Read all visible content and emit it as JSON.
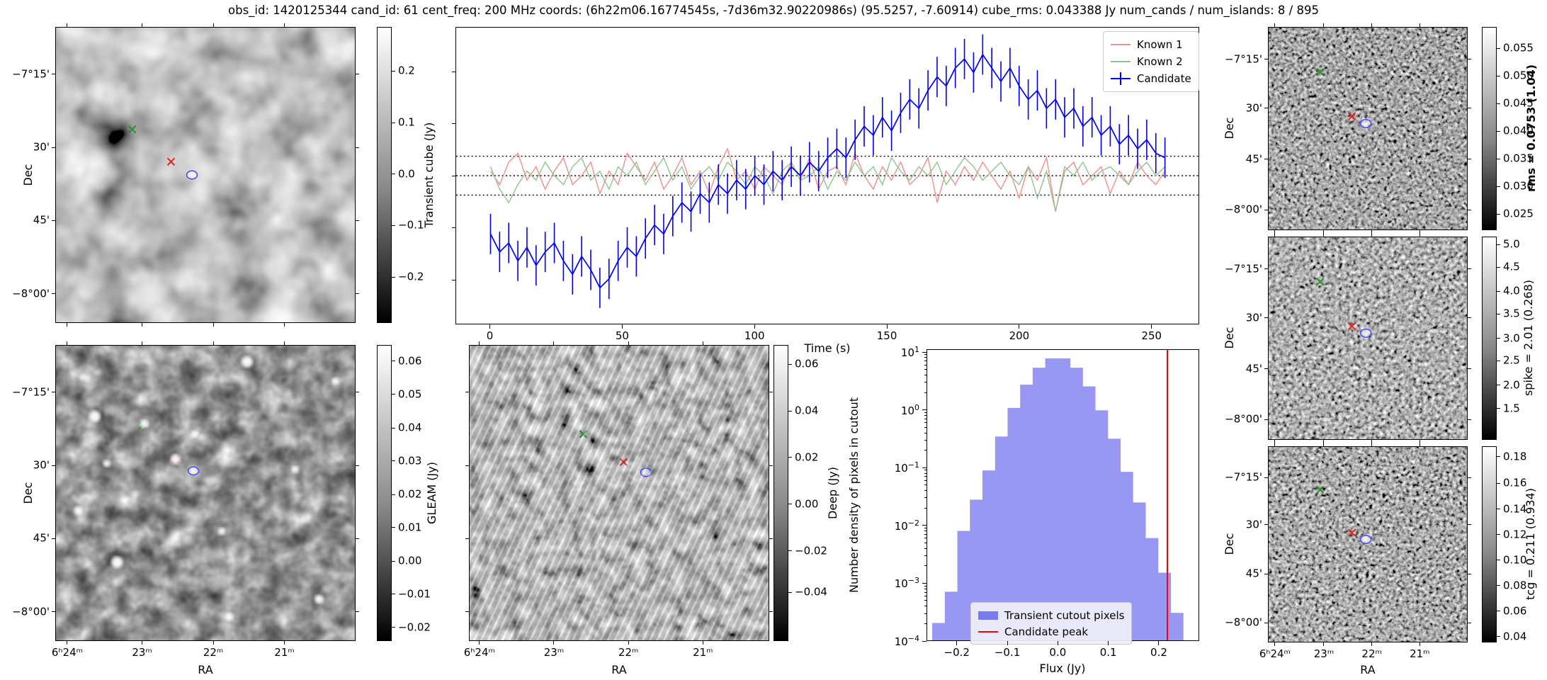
{
  "title": "obs_id: 1420125344 cand_id: 61 cent_freq: 200 MHz coords: (6h22m06.16774545s, -7d36m32.90220986s) (95.5257, -7.60914) cube_rms: 0.043388 Jy num_cands / num_islands: 8 / 895",
  "axes": {
    "dec_label": "Dec",
    "ra_label": "RA",
    "time_label": "Time (s)",
    "flux_label": "Flux (Jy)",
    "ndens_label": "Number density of pixels in cutout",
    "dec_ticks": [
      "−7°15'",
      "30'",
      "45'",
      "−8°00'"
    ],
    "ra_ticks": [
      "6ʰ24ᵐ",
      "23ᵐ",
      "22ᵐ",
      "21ᵐ"
    ],
    "time_ticks": [
      "0",
      "50",
      "100",
      "150",
      "200",
      "250"
    ],
    "flux_ticks": [
      "−0.2",
      "−0.1",
      "0.0",
      "0.1",
      "0.2"
    ],
    "ndens_exponents": [
      "1",
      "0",
      "−1",
      "−2",
      "−3",
      "−4"
    ]
  },
  "colorbars": {
    "cube": {
      "label": "Transient cube (Jy)",
      "ticks": [
        "0.2",
        "0.1",
        "0.0",
        "−0.1",
        "−0.2"
      ]
    },
    "gleam": {
      "label": "GLEAM (Jy)",
      "ticks": [
        "0.06",
        "0.05",
        "0.04",
        "0.03",
        "0.02",
        "0.01",
        "0.00",
        "−0.01",
        "−0.02"
      ]
    },
    "deep": {
      "label": "Deep (Jy)",
      "ticks": [
        "0.06",
        "0.04",
        "0.02",
        "0.00",
        "−0.02",
        "−0.04"
      ]
    },
    "rms": {
      "label": "rms = 0.0753 (1.04)",
      "ticks": [
        "0.055",
        "0.050",
        "0.045",
        "0.040",
        "0.035",
        "0.030",
        "0.025"
      ]
    },
    "spike": {
      "label": "spike = 2.01 (0.268)",
      "ticks": [
        "5.0",
        "4.5",
        "4.0",
        "3.5",
        "3.0",
        "2.5",
        "2.0",
        "1.5"
      ]
    },
    "tcg": {
      "label": "tcg = 0.211 (0.934)",
      "ticks": [
        "0.18",
        "0.16",
        "0.14",
        "0.12",
        "0.10",
        "0.08",
        "0.06",
        "0.04"
      ]
    }
  },
  "colors": {
    "known1": "#f28d8d",
    "known2": "#8fc48f",
    "candidate": "#0000ee",
    "hist_fill": "#7b7bf0",
    "peak_line": "#ff0000",
    "marker_known1": "#dd2222",
    "marker_known2": "#2e8b2e",
    "marker_candidate": "#4d4dff",
    "dotted_line": "#000000"
  },
  "lightcurve_legend": [
    {
      "label": "Known 1"
    },
    {
      "label": "Known 2"
    },
    {
      "label": "Candidate"
    }
  ],
  "hist_legend": [
    {
      "label": "Transient cutout pixels"
    },
    {
      "label": "Candidate peak"
    }
  ],
  "chart_data": [
    {
      "type": "line",
      "title": "",
      "xlabel": "Time (s)",
      "ylabel": "",
      "xlim": [
        -13,
        268
      ],
      "ylim": [
        -0.33,
        0.33
      ],
      "xticks": [
        0,
        50,
        100,
        150,
        200,
        250
      ],
      "hlines": [
        0.043388,
        0,
        -0.043388
      ],
      "legend_position": "upper right",
      "t0": 0,
      "dt": 3.45,
      "series": [
        {
          "name": "Known 1",
          "values": [
            0.01,
            -0.02,
            0.03,
            0.05,
            -0.01,
            0.02,
            -0.03,
            0.01,
            0.04,
            -0.02,
            0.0,
            0.03,
            -0.04,
            0.01,
            -0.02,
            0.05,
            0.02,
            -0.01,
            0.03,
            -0.03,
            0.0,
            0.04,
            -0.02,
            0.01,
            -0.04,
            0.02,
            0.06,
            -0.01,
            0.01,
            -0.03,
            0.02,
            0.0,
            -0.02,
            0.03,
            -0.01,
            0.04,
            -0.03,
            0.01,
            0.02,
            -0.02,
            0.05,
            0.0,
            -0.03,
            0.02,
            -0.01,
            0.03,
            -0.02,
            0.0,
            0.04,
            -0.06,
            0.01,
            -0.02,
            0.02,
            -0.01,
            0.03,
            0.0,
            -0.03,
            0.01,
            -0.05,
            0.02,
            -0.01,
            0.04,
            -0.08,
            0.01,
            0.03,
            -0.02,
            0.0,
            0.02,
            -0.04,
            0.01,
            -0.02,
            0.03,
            0.0,
            -0.02,
            0.01
          ]
        },
        {
          "name": "Known 2",
          "values": [
            0.02,
            -0.03,
            -0.06,
            -0.02,
            0.01,
            -0.01,
            0.03,
            0.0,
            -0.02,
            0.02,
            0.04,
            -0.01,
            0.01,
            -0.03,
            0.02,
            0.0,
            0.03,
            -0.02,
            0.01,
            0.04,
            -0.01,
            0.02,
            -0.03,
            0.0,
            0.02,
            -0.01,
            0.03,
            0.01,
            -0.02,
            0.02,
            0.0,
            -0.04,
            0.01,
            0.03,
            -0.01,
            0.0,
            0.02,
            -0.03,
            0.01,
            -0.01,
            0.03,
            0.0,
            0.02,
            -0.02,
            0.04,
            0.01,
            -0.01,
            0.02,
            0.0,
            0.03,
            -0.02,
            0.01,
            0.04,
            0.02,
            -0.01,
            0.01,
            0.03,
            0.0,
            -0.02,
            0.02,
            -0.05,
            0.01,
            -0.08,
            0.02,
            0.0,
            0.03,
            -0.01,
            0.01,
            0.02,
            0.0,
            -0.02,
            0.01,
            0.03,
            0.0,
            0.02
          ]
        },
        {
          "name": "Candidate",
          "error": 0.045,
          "values": [
            -0.13,
            -0.17,
            -0.15,
            -0.19,
            -0.16,
            -0.2,
            -0.17,
            -0.15,
            -0.19,
            -0.22,
            -0.18,
            -0.21,
            -0.25,
            -0.23,
            -0.19,
            -0.16,
            -0.18,
            -0.14,
            -0.11,
            -0.13,
            -0.09,
            -0.06,
            -0.08,
            -0.04,
            -0.06,
            -0.02,
            -0.04,
            -0.01,
            -0.03,
            0.0,
            -0.02,
            0.01,
            -0.01,
            0.02,
            0.0,
            0.03,
            0.01,
            0.04,
            0.06,
            0.04,
            0.08,
            0.11,
            0.09,
            0.13,
            0.1,
            0.14,
            0.17,
            0.15,
            0.19,
            0.22,
            0.2,
            0.24,
            0.26,
            0.23,
            0.27,
            0.24,
            0.21,
            0.24,
            0.2,
            0.17,
            0.19,
            0.15,
            0.17,
            0.13,
            0.15,
            0.11,
            0.13,
            0.09,
            0.11,
            0.07,
            0.09,
            0.06,
            0.08,
            0.05,
            0.04
          ]
        }
      ]
    },
    {
      "type": "bar",
      "title": "",
      "xlabel": "Flux (Jy)",
      "ylabel": "Number density of pixels in cutout",
      "yscale": "log",
      "xlim": [
        -0.26,
        0.28
      ],
      "ylim_exp": [
        -4,
        1.05
      ],
      "xticks": [
        -0.2,
        -0.1,
        0.0,
        0.1,
        0.2
      ],
      "bin_start": -0.25,
      "bin_width": 0.025,
      "densities": [
        0.0002,
        0.0007,
        0.008,
        0.028,
        0.09,
        0.35,
        1.1,
        2.8,
        5.5,
        8.0,
        8.0,
        5.5,
        2.6,
        1.0,
        0.32,
        0.085,
        0.025,
        0.006,
        0.0015,
        0.0003
      ],
      "candidate_peak": 0.218,
      "legend_position": "lower center"
    }
  ]
}
